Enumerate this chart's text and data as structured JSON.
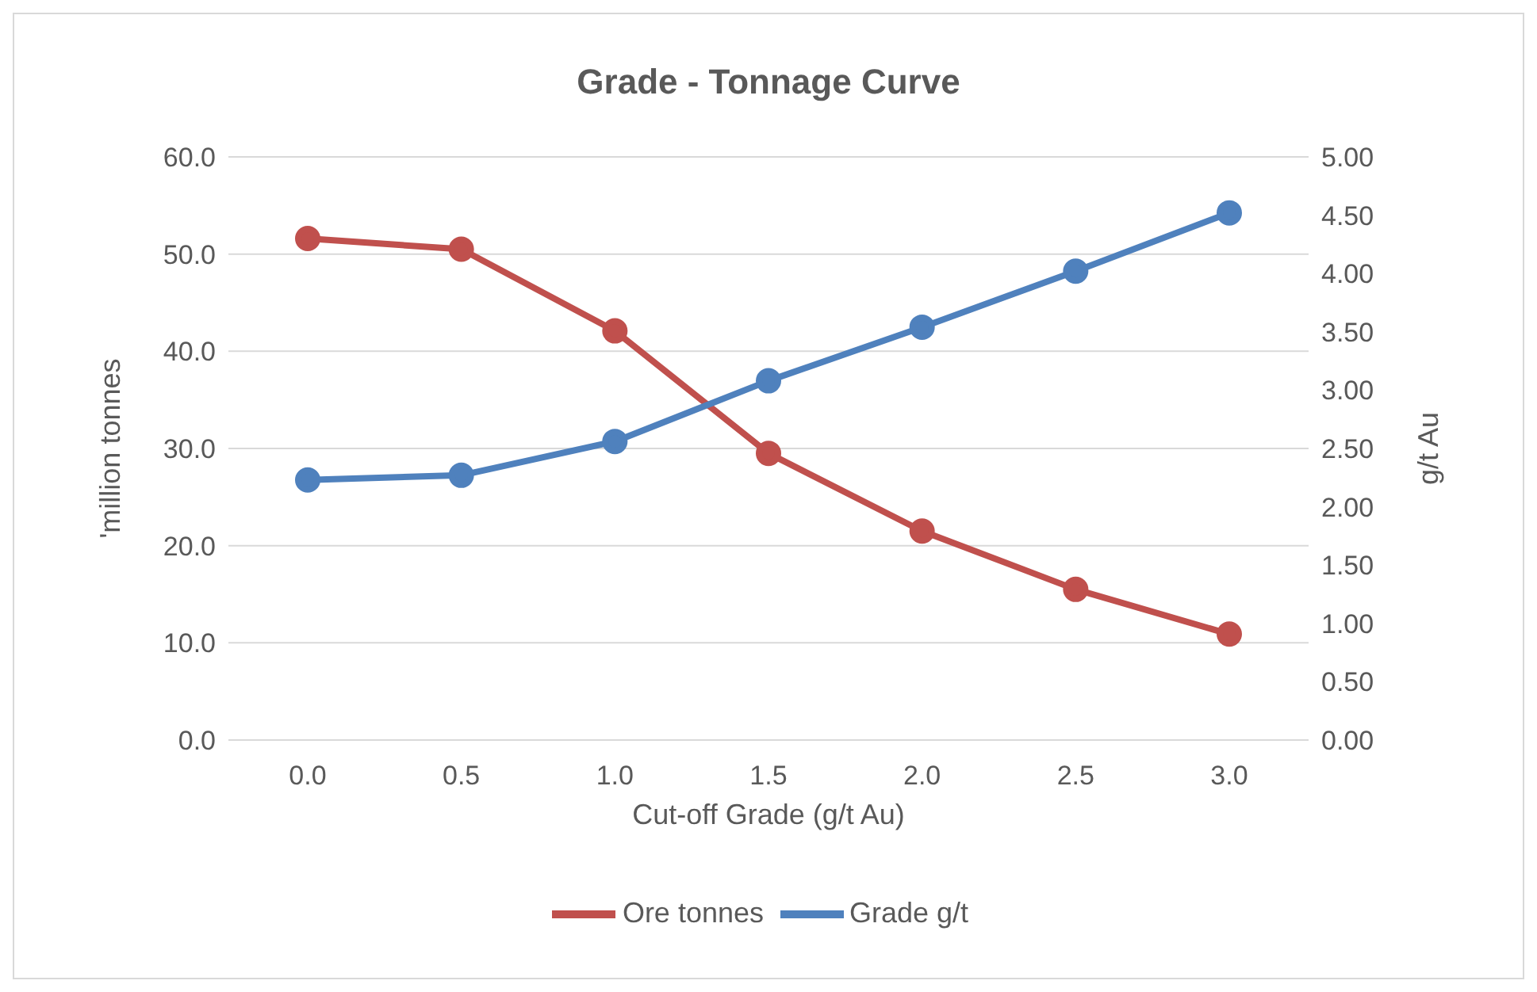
{
  "chart_data": {
    "type": "line",
    "title": "Grade - Tonnage Curve",
    "xlabel": "Cut-off Grade (g/t Au)",
    "ylabel": "'million tonnes",
    "y2label": "g/t Au",
    "categories": [
      "0.0",
      "0.5",
      "1.0",
      "1.5",
      "2.0",
      "2.5",
      "3.0"
    ],
    "series": [
      {
        "name": "Ore tonnes",
        "color": "#c0504d",
        "values": [
          51.6,
          50.5,
          42.1,
          29.5,
          21.5,
          15.5,
          10.9
        ]
      },
      {
        "name": "Grade g/t",
        "color": "#4f81bd",
        "axis": "y2",
        "values": [
          2.23,
          2.27,
          2.56,
          3.08,
          3.54,
          4.02,
          4.52
        ]
      }
    ],
    "ylim": [
      0,
      60
    ],
    "yticks": [
      {
        "value": 0,
        "label": "0.0"
      },
      {
        "value": 10,
        "label": "10.0"
      },
      {
        "value": 20,
        "label": "20.0"
      },
      {
        "value": 30,
        "label": "30.0"
      },
      {
        "value": 40,
        "label": "40.0"
      },
      {
        "value": 50,
        "label": "50.0"
      },
      {
        "value": 60,
        "label": "60.0"
      }
    ],
    "y2lim": [
      0,
      5
    ],
    "y2ticks": [
      {
        "value": 0,
        "label": "0.00"
      },
      {
        "value": 0.5,
        "label": "0.50"
      },
      {
        "value": 1,
        "label": "1.00"
      },
      {
        "value": 1.5,
        "label": "1.50"
      },
      {
        "value": 2,
        "label": "2.00"
      },
      {
        "value": 2.5,
        "label": "2.50"
      },
      {
        "value": 3,
        "label": "3.00"
      },
      {
        "value": 3.5,
        "label": "3.50"
      },
      {
        "value": 4,
        "label": "4.00"
      },
      {
        "value": 4.5,
        "label": "4.50"
      },
      {
        "value": 5,
        "label": "5.00"
      }
    ],
    "grid": "y",
    "legend": "bottom",
    "marker": "circle",
    "line_style": "solid"
  }
}
